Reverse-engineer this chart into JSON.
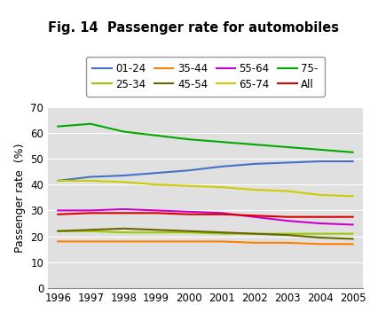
{
  "title": "Fig. 14  Passenger rate for automobiles",
  "ylabel": "Passenger rate  (%)",
  "years": [
    1996,
    1997,
    1998,
    1999,
    2000,
    2001,
    2002,
    2003,
    2004,
    2005
  ],
  "series": {
    "01-24": {
      "color": "#4472C4",
      "values": [
        41.5,
        43.0,
        43.5,
        44.5,
        45.5,
        47.0,
        48.0,
        48.5,
        49.0,
        49.0
      ]
    },
    "25-34": {
      "color": "#99CC00",
      "values": [
        22.0,
        22.0,
        21.5,
        21.5,
        21.5,
        21.0,
        21.0,
        21.0,
        21.0,
        21.0
      ]
    },
    "35-44": {
      "color": "#FF8000",
      "values": [
        18.0,
        18.0,
        18.0,
        18.0,
        18.0,
        18.0,
        17.5,
        17.5,
        17.0,
        17.0
      ]
    },
    "45-54": {
      "color": "#666600",
      "values": [
        22.0,
        22.5,
        23.0,
        22.5,
        22.0,
        21.5,
        21.0,
        20.5,
        19.5,
        19.0
      ]
    },
    "55-64": {
      "color": "#CC00CC",
      "values": [
        30.0,
        30.0,
        30.5,
        30.0,
        29.5,
        29.0,
        27.5,
        26.0,
        25.0,
        24.5
      ]
    },
    "65-74": {
      "color": "#CCCC00",
      "values": [
        41.5,
        41.5,
        41.0,
        40.0,
        39.5,
        39.0,
        38.0,
        37.5,
        36.0,
        35.5
      ]
    },
    "75-": {
      "color": "#00AA00",
      "values": [
        62.5,
        63.5,
        60.5,
        59.0,
        57.5,
        56.5,
        55.5,
        54.5,
        53.5,
        52.5
      ]
    },
    "All": {
      "color": "#DD0000",
      "values": [
        28.5,
        29.0,
        29.0,
        29.0,
        28.5,
        28.5,
        28.0,
        27.5,
        27.5,
        27.5
      ]
    }
  },
  "ylim": [
    0,
    70
  ],
  "yticks": [
    0,
    10,
    20,
    30,
    40,
    50,
    60,
    70
  ],
  "background_color": "#E0E0E0",
  "legend_order": [
    "01-24",
    "25-34",
    "35-44",
    "45-54",
    "55-64",
    "65-74",
    "75-",
    "All"
  ],
  "title_fontsize": 10.5,
  "axis_label_fontsize": 9,
  "tick_fontsize": 8.5,
  "legend_fontsize": 8.5
}
